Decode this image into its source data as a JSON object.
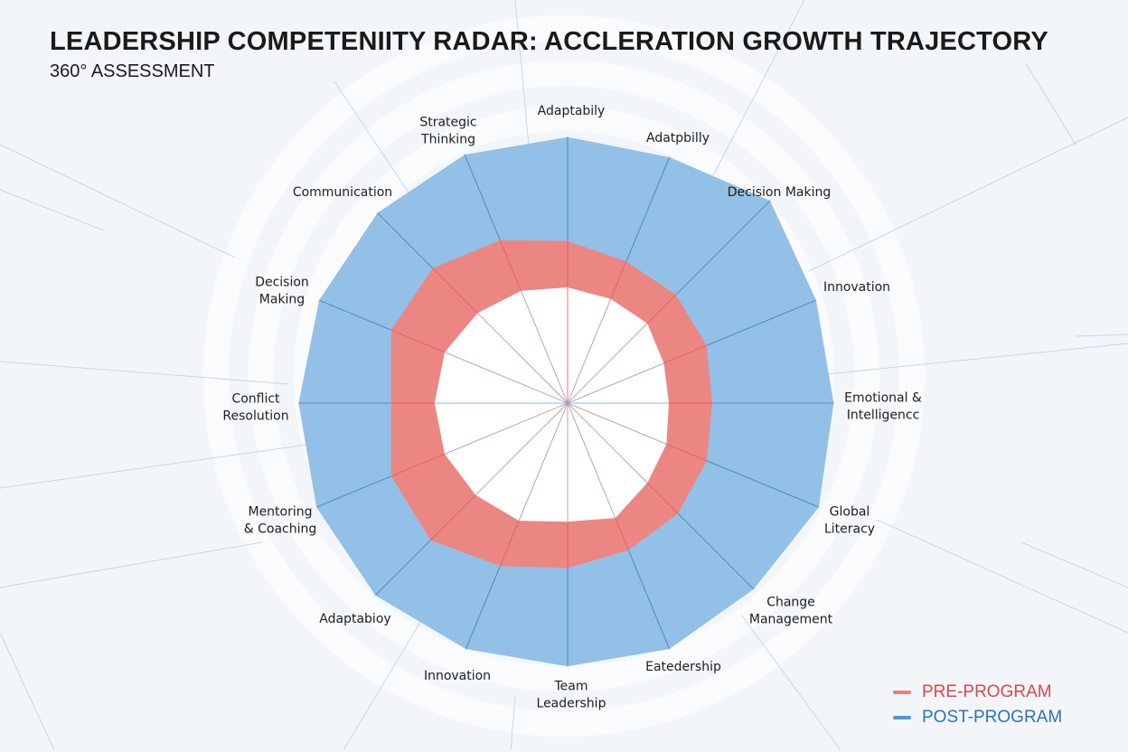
{
  "title": "LEADERSHIP COMPETENIITY RADAR: ACCLERATION GROWTH TRAJECTORY",
  "subtitle": "360° ASSESSMENT",
  "colors": {
    "pre": "#ec8683",
    "post": "#92c0e6",
    "pre_legend": "#d9474c",
    "post_legend": "#2b73b8",
    "background": "#f3f6f9"
  },
  "legend": {
    "placement": "bottom-right",
    "items": [
      {
        "label": "PRE-PROGRAM",
        "color": "#d9474c",
        "swatch": "#ec7d7b"
      },
      {
        "label": "POST-PROGRAM",
        "color": "#2b73b8",
        "swatch": "#4a98dc"
      }
    ]
  },
  "chart_data": {
    "type": "radar",
    "title": "LEADERSHIP COMPETENIITY RADAR: ACCLERATION GROWTH TRAJECTORY",
    "subtitle": "360° ASSESSMENT",
    "range": [
      0,
      100
    ],
    "grid": false,
    "categories": [
      "Adaptabily",
      "Adatpbilly",
      "Decision Making",
      "Innovation",
      "Emotional &\nIntelligencc",
      "Global\nLiteracy",
      "Change\nManagement",
      "Eatedership",
      "Team\nLeadership",
      "Innovation",
      "Adaptabioy",
      "Mentoring\n& Coaching",
      "Conflict\nResolution",
      "Decision\nMaking",
      "Communication",
      "Strategic\nThinking"
    ],
    "series": [
      {
        "name": "POST-PROGRAM",
        "values": [
          92,
          92,
          99,
          93,
          92,
          94,
          91,
          92,
          91,
          92,
          94,
          94,
          93,
          93,
          93,
          93
        ]
      },
      {
        "name": "PRE-PROGRAM",
        "values": [
          56,
          53,
          53,
          52,
          50,
          52,
          54,
          55,
          57,
          61,
          67,
          66,
          61,
          66,
          66,
          61
        ]
      },
      {
        "values": [
          40,
          39,
          39,
          36,
          35,
          37,
          39,
          43,
          41,
          44,
          45,
          46,
          46,
          46,
          44,
          42
        ]
      }
    ]
  }
}
